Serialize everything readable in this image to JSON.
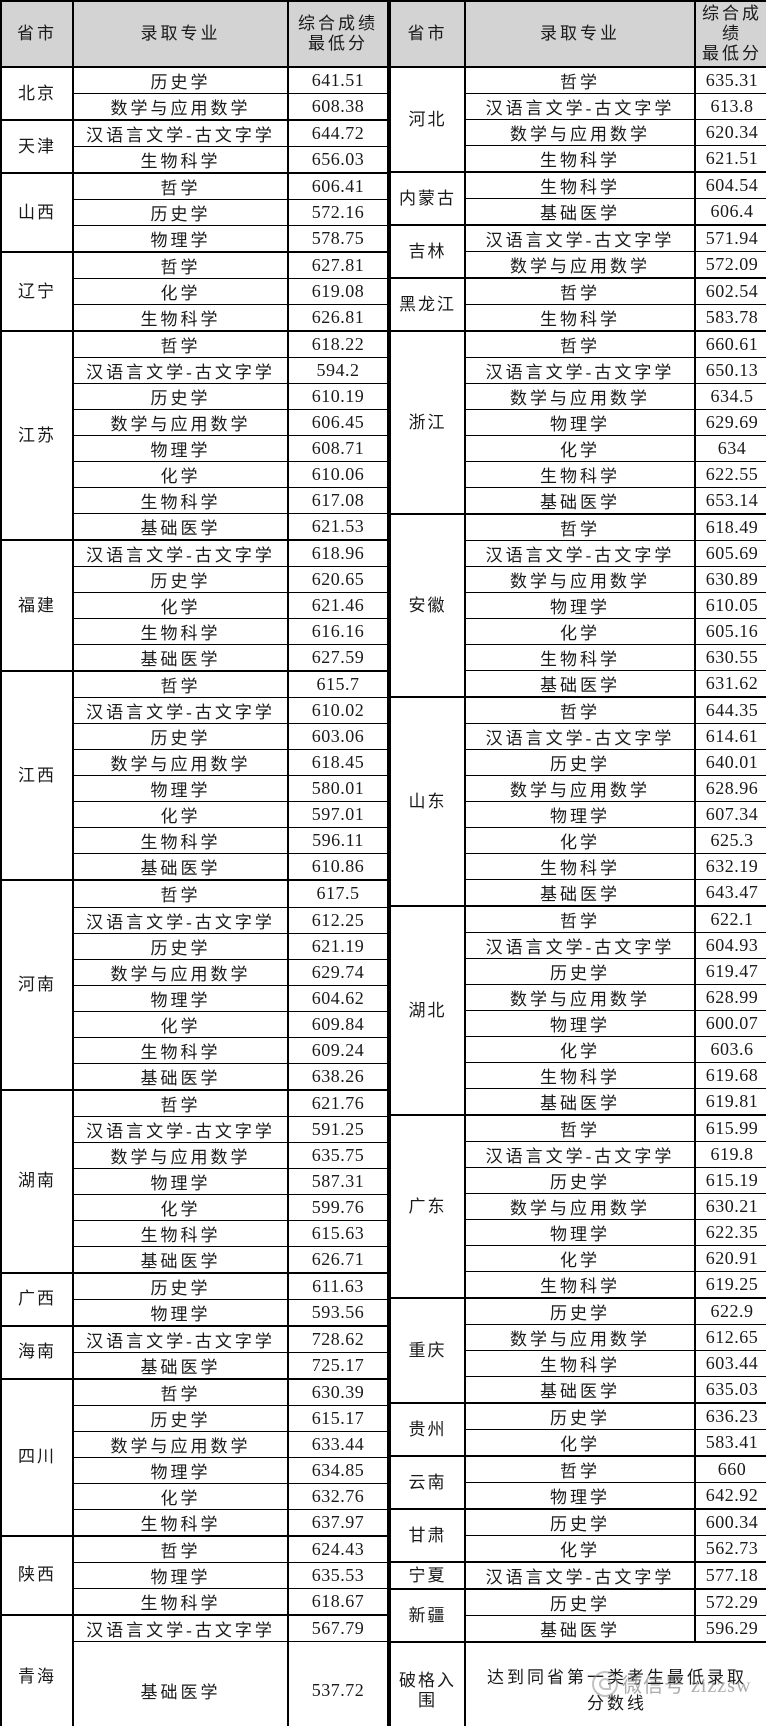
{
  "header": {
    "province": "省市",
    "major": "录取专业",
    "score_left": [
      "综合成绩",
      "最低分"
    ],
    "score_right": [
      "综合成",
      "绩",
      "最低分"
    ]
  },
  "colors": {
    "header_bg": "#d3d3d3",
    "border": "#000000",
    "watermark": "#8f8f8f"
  },
  "watermark": {
    "icon": "wechat-round-logo",
    "text": "微信号 zizzsw"
  },
  "left_table": {
    "groups": [
      {
        "province": "北京",
        "rows": [
          {
            "major": "历史学",
            "score": "641.51"
          },
          {
            "major": "数学与应用数学",
            "score": "608.38"
          }
        ]
      },
      {
        "province": "天津",
        "rows": [
          {
            "major": "汉语言文学-古文字学",
            "score": "644.72"
          },
          {
            "major": "生物科学",
            "score": "656.03"
          }
        ]
      },
      {
        "province": "山西",
        "rows": [
          {
            "major": "哲学",
            "score": "606.41"
          },
          {
            "major": "历史学",
            "score": "572.16"
          },
          {
            "major": "物理学",
            "score": "578.75"
          }
        ]
      },
      {
        "province": "辽宁",
        "rows": [
          {
            "major": "哲学",
            "score": "627.81"
          },
          {
            "major": "化学",
            "score": "619.08"
          },
          {
            "major": "生物科学",
            "score": "626.81"
          }
        ]
      },
      {
        "province": "江苏",
        "rows": [
          {
            "major": "哲学",
            "score": "618.22"
          },
          {
            "major": "汉语言文学-古文字学",
            "score": "594.2"
          },
          {
            "major": "历史学",
            "score": "610.19"
          },
          {
            "major": "数学与应用数学",
            "score": "606.45"
          },
          {
            "major": "物理学",
            "score": "608.71"
          },
          {
            "major": "化学",
            "score": "610.06"
          },
          {
            "major": "生物科学",
            "score": "617.08"
          },
          {
            "major": "基础医学",
            "score": "621.53"
          }
        ]
      },
      {
        "province": "福建",
        "rows": [
          {
            "major": "汉语言文学-古文字学",
            "score": "618.96"
          },
          {
            "major": "历史学",
            "score": "620.65"
          },
          {
            "major": "化学",
            "score": "621.46"
          },
          {
            "major": "生物科学",
            "score": "616.16"
          },
          {
            "major": "基础医学",
            "score": "627.59"
          }
        ]
      },
      {
        "province": "江西",
        "rows": [
          {
            "major": "哲学",
            "score": "615.7"
          },
          {
            "major": "汉语言文学-古文字学",
            "score": "610.02"
          },
          {
            "major": "历史学",
            "score": "603.06"
          },
          {
            "major": "数学与应用数学",
            "score": "618.45"
          },
          {
            "major": "物理学",
            "score": "580.01"
          },
          {
            "major": "化学",
            "score": "597.01"
          },
          {
            "major": "生物科学",
            "score": "596.11"
          },
          {
            "major": "基础医学",
            "score": "610.86"
          }
        ]
      },
      {
        "province": "河南",
        "rows": [
          {
            "major": "哲学",
            "score": "617.5"
          },
          {
            "major": "汉语言文学-古文字学",
            "score": "612.25"
          },
          {
            "major": "历史学",
            "score": "621.19"
          },
          {
            "major": "数学与应用数学",
            "score": "629.74"
          },
          {
            "major": "物理学",
            "score": "604.62"
          },
          {
            "major": "化学",
            "score": "609.84"
          },
          {
            "major": "生物科学",
            "score": "609.24"
          },
          {
            "major": "基础医学",
            "score": "638.26"
          }
        ]
      },
      {
        "province": "湖南",
        "rows": [
          {
            "major": "哲学",
            "score": "621.76"
          },
          {
            "major": "汉语言文学-古文字学",
            "score": "591.25"
          },
          {
            "major": "数学与应用数学",
            "score": "635.75"
          },
          {
            "major": "物理学",
            "score": "587.31"
          },
          {
            "major": "化学",
            "score": "599.76"
          },
          {
            "major": "生物科学",
            "score": "615.63"
          },
          {
            "major": "基础医学",
            "score": "626.71"
          }
        ]
      },
      {
        "province": "广西",
        "rows": [
          {
            "major": "历史学",
            "score": "611.63"
          },
          {
            "major": "物理学",
            "score": "593.56"
          }
        ]
      },
      {
        "province": "海南",
        "rows": [
          {
            "major": "汉语言文学-古文字学",
            "score": "728.62"
          },
          {
            "major": "基础医学",
            "score": "725.17"
          }
        ]
      },
      {
        "province": "四川",
        "rows": [
          {
            "major": "哲学",
            "score": "630.39"
          },
          {
            "major": "历史学",
            "score": "615.17"
          },
          {
            "major": "数学与应用数学",
            "score": "633.44"
          },
          {
            "major": "物理学",
            "score": "634.85"
          },
          {
            "major": "化学",
            "score": "632.76"
          },
          {
            "major": "生物科学",
            "score": "637.97"
          }
        ]
      },
      {
        "province": "陕西",
        "rows": [
          {
            "major": "哲学",
            "score": "624.43"
          },
          {
            "major": "物理学",
            "score": "635.53"
          },
          {
            "major": "生物科学",
            "score": "618.67"
          }
        ]
      },
      {
        "province": "青海",
        "rows": [
          {
            "major": "汉语言文学-古文字学",
            "score": "567.79"
          },
          {
            "major": "基础医学",
            "score": "537.72",
            "tall": true
          }
        ]
      }
    ]
  },
  "right_table": {
    "groups": [
      {
        "province": "河北",
        "rows": [
          {
            "major": "哲学",
            "score": "635.31"
          },
          {
            "major": "汉语言文学-古文字学",
            "score": "613.8"
          },
          {
            "major": "数学与应用数学",
            "score": "620.34"
          },
          {
            "major": "生物科学",
            "score": "621.51"
          }
        ]
      },
      {
        "province": "内蒙古",
        "rows": [
          {
            "major": "生物科学",
            "score": "604.54"
          },
          {
            "major": "基础医学",
            "score": "606.4"
          }
        ]
      },
      {
        "province": "吉林",
        "rows": [
          {
            "major": "汉语言文学-古文字学",
            "score": "571.94"
          },
          {
            "major": "数学与应用数学",
            "score": "572.09"
          }
        ]
      },
      {
        "province": "黑龙江",
        "rows": [
          {
            "major": "哲学",
            "score": "602.54"
          },
          {
            "major": "生物科学",
            "score": "583.78"
          }
        ]
      },
      {
        "province": "浙江",
        "rows": [
          {
            "major": "哲学",
            "score": "660.61"
          },
          {
            "major": "汉语言文学-古文字学",
            "score": "650.13"
          },
          {
            "major": "数学与应用数学",
            "score": "634.5"
          },
          {
            "major": "物理学",
            "score": "629.69"
          },
          {
            "major": "化学",
            "score": "634"
          },
          {
            "major": "生物科学",
            "score": "622.55"
          },
          {
            "major": "基础医学",
            "score": "653.14"
          }
        ]
      },
      {
        "province": "安徽",
        "rows": [
          {
            "major": "哲学",
            "score": "618.49"
          },
          {
            "major": "汉语言文学-古文字学",
            "score": "605.69"
          },
          {
            "major": "数学与应用数学",
            "score": "630.89"
          },
          {
            "major": "物理学",
            "score": "610.05"
          },
          {
            "major": "化学",
            "score": "605.16"
          },
          {
            "major": "生物科学",
            "score": "630.55"
          },
          {
            "major": "基础医学",
            "score": "631.62"
          }
        ]
      },
      {
        "province": "山东",
        "rows": [
          {
            "major": "哲学",
            "score": "644.35"
          },
          {
            "major": "汉语言文学-古文字学",
            "score": "614.61"
          },
          {
            "major": "历史学",
            "score": "640.01"
          },
          {
            "major": "数学与应用数学",
            "score": "628.96"
          },
          {
            "major": "物理学",
            "score": "607.34"
          },
          {
            "major": "化学",
            "score": "625.3"
          },
          {
            "major": "生物科学",
            "score": "632.19"
          },
          {
            "major": "基础医学",
            "score": "643.47"
          }
        ]
      },
      {
        "province": "湖北",
        "rows": [
          {
            "major": "哲学",
            "score": "622.1"
          },
          {
            "major": "汉语言文学-古文字学",
            "score": "604.93"
          },
          {
            "major": "历史学",
            "score": "619.47"
          },
          {
            "major": "数学与应用数学",
            "score": "628.99"
          },
          {
            "major": "物理学",
            "score": "600.07"
          },
          {
            "major": "化学",
            "score": "603.6"
          },
          {
            "major": "生物科学",
            "score": "619.68"
          },
          {
            "major": "基础医学",
            "score": "619.81"
          }
        ]
      },
      {
        "province": "广东",
        "rows": [
          {
            "major": "哲学",
            "score": "615.99"
          },
          {
            "major": "汉语言文学-古文字学",
            "score": "619.8"
          },
          {
            "major": "历史学",
            "score": "615.19"
          },
          {
            "major": "数学与应用数学",
            "score": "630.21"
          },
          {
            "major": "物理学",
            "score": "622.35"
          },
          {
            "major": "化学",
            "score": "620.91"
          },
          {
            "major": "生物科学",
            "score": "619.25"
          }
        ]
      },
      {
        "province": "重庆",
        "rows": [
          {
            "major": "历史学",
            "score": "622.9"
          },
          {
            "major": "数学与应用数学",
            "score": "612.65"
          },
          {
            "major": "生物科学",
            "score": "603.44"
          },
          {
            "major": "基础医学",
            "score": "635.03"
          }
        ]
      },
      {
        "province": "贵州",
        "rows": [
          {
            "major": "历史学",
            "score": "636.23"
          },
          {
            "major": "化学",
            "score": "583.41"
          }
        ]
      },
      {
        "province": "云南",
        "rows": [
          {
            "major": "哲学",
            "score": "660"
          },
          {
            "major": "物理学",
            "score": "642.92"
          }
        ]
      },
      {
        "province": "甘肃",
        "rows": [
          {
            "major": "历史学",
            "score": "600.34"
          },
          {
            "major": "化学",
            "score": "562.73"
          }
        ]
      },
      {
        "province": "宁夏",
        "rows": [
          {
            "major": "汉语言文学-古文字学",
            "score": "577.18"
          }
        ]
      },
      {
        "province": "新疆",
        "rows": [
          {
            "major": "历史学",
            "score": "572.29"
          },
          {
            "major": "基础医学",
            "score": "596.29"
          }
        ]
      },
      {
        "province": "破格入围",
        "rows": [
          {
            "major": "达到同省第一类考生最低录取分数线",
            "score": null,
            "merged": true,
            "tall": true
          }
        ]
      }
    ]
  }
}
